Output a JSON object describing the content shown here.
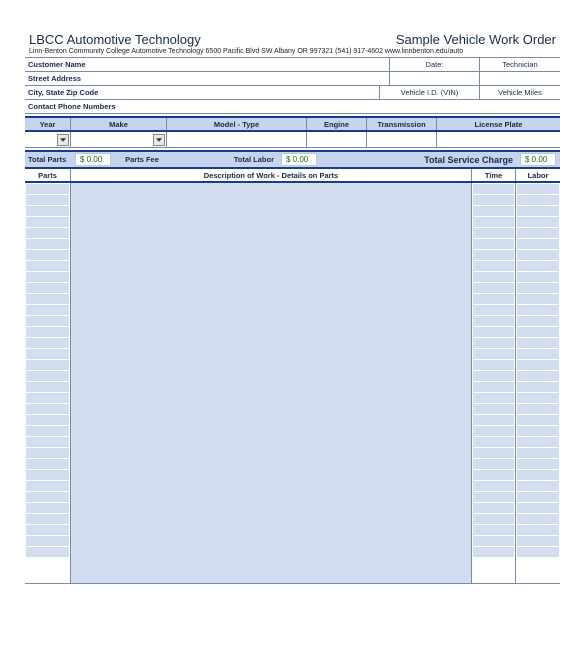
{
  "colors": {
    "band_bg": "#c5d4ef",
    "cell_bg": "#d3ddf0",
    "border": "#7a8aa8",
    "thick_border": "#1a3a8a",
    "text": "#1a2a4a",
    "value_text": "#1a6a2a"
  },
  "header": {
    "title_left": "LBCC Automotive Technology",
    "title_right": "Sample Vehicle Work Order",
    "subtitle": "Linn-Benton Community College  Automotive Technology   6500 Pacific Blvd SW Albany OR 997321    (541) 917-4602 www.linnbenton.edu/auto"
  },
  "info": {
    "customer_label": "Customer Name",
    "date_label": "Date:",
    "technician_label": "Technician",
    "street_label": "Street Address",
    "city_label": "City, State   Zip Code",
    "vin_label": "Vehicle I.D. (VIN)",
    "miles_label": "Vehicle Miles",
    "contact_label": "Contact Phone Numbers"
  },
  "vehicle_cols": {
    "year": "Year",
    "make": "Make",
    "model": "Model - Type",
    "engine": "Engine",
    "transmission": "Transmission",
    "license": "License Plate"
  },
  "totals": {
    "total_parts_label": "Total Parts",
    "total_parts_value": "$ 0.00",
    "parts_fee_label": "Parts Fee",
    "total_labor_label": "Total Labor",
    "total_labor_value": "$ 0.00",
    "service_charge_label": "Total Service Charge",
    "service_charge_value": "$ 0.00"
  },
  "work_cols": {
    "parts": "Parts",
    "description": "Description of Work - Details on Parts",
    "time": "Time",
    "labor": "Labor"
  },
  "layout": {
    "num_slots": 34,
    "col_year_w": 46,
    "col_make_w": 96,
    "col_model_w": 140,
    "col_engine_w": 60,
    "col_trans_w": 70,
    "col_license_w": 1,
    "info_date_w": 90,
    "info_tech_w": 80,
    "info_vin_w": 100,
    "info_miles_w": 80
  }
}
